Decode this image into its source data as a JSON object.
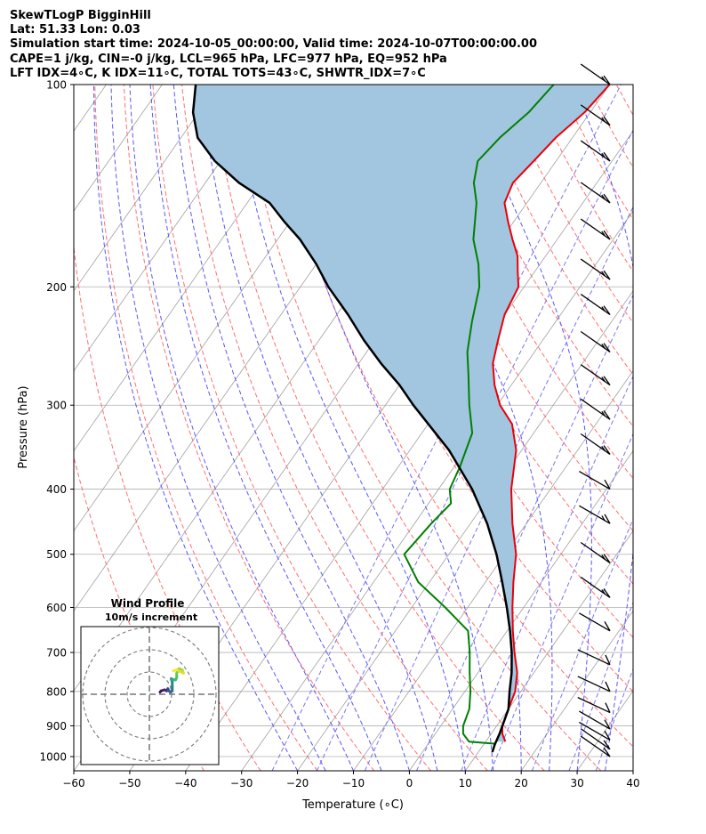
{
  "header": {
    "line1": "SkewTLogP BigginHill",
    "line2": "Lat: 51.33   Lon: 0.03",
    "line3": "Simulation start time: 2024-10-05_00:00:00, Valid time: 2024-10-07T00:00:00.00",
    "line4": "CAPE=1 j/kg, CIN=-0 j/kg, LCL=965 hPa, LFC=977 hPa, EQ=952 hPa",
    "line5": "LFT IDX=4∘C, K IDX=11∘C, TOTAL TOTS=43∘C, SHWTR_IDX=7∘C"
  },
  "chart_data": [
    {
      "type": "line",
      "subtype": "skew-t log-p",
      "xlabel": "Temperature (∘C)",
      "ylabel": "Pressure (hPa)",
      "xlim": [
        -60,
        40
      ],
      "ylim": [
        1050,
        100
      ],
      "yscale": "log",
      "grid": true,
      "x_ticks": [
        "−60",
        "−50",
        "−40",
        "−30",
        "−20",
        "−10",
        "0",
        "10",
        "20",
        "30",
        "40"
      ],
      "y_ticks": [
        "100",
        "200",
        "300",
        "400",
        "500",
        "600",
        "700",
        "800",
        "900",
        "1000"
      ],
      "series": [
        {
          "role": "temperature",
          "color": "#e8000b",
          "points": [
            [
              13.5,
              950
            ],
            [
              12,
              925
            ],
            [
              11,
              900
            ],
            [
              10,
              850
            ],
            [
              9,
              800
            ],
            [
              7,
              750
            ],
            [
              4,
              700
            ],
            [
              1,
              650
            ],
            [
              -2,
              600
            ],
            [
              -5,
              550
            ],
            [
              -8,
              500
            ],
            [
              -12.5,
              450
            ],
            [
              -17,
              400
            ],
            [
              -21,
              350
            ],
            [
              -25,
              320
            ],
            [
              -29.5,
              300
            ],
            [
              -33,
              280
            ],
            [
              -36,
              260
            ],
            [
              -38,
              240
            ],
            [
              -40,
              220
            ],
            [
              -41,
              200
            ],
            [
              -43,
              190
            ],
            [
              -45,
              180
            ],
            [
              -48,
              170
            ],
            [
              -51,
              160
            ],
            [
              -54,
              150
            ],
            [
              -55,
              140
            ],
            [
              -54,
              130
            ],
            [
              -53,
              120
            ],
            [
              -51,
              110
            ],
            [
              -50,
              100
            ]
          ]
        },
        {
          "role": "dewpoint",
          "color": "#008000",
          "points": [
            [
              12,
              957
            ],
            [
              7,
              950
            ],
            [
              5,
              925
            ],
            [
              4,
              900
            ],
            [
              3,
              850
            ],
            [
              1,
              800
            ],
            [
              -1.5,
              750
            ],
            [
              -4,
              700
            ],
            [
              -7,
              650
            ],
            [
              -14,
              600
            ],
            [
              -22,
              550
            ],
            [
              -28,
              500
            ],
            [
              -27,
              450
            ],
            [
              -26,
              420
            ],
            [
              -28,
              400
            ],
            [
              -29,
              370
            ],
            [
              -31,
              330
            ],
            [
              -35,
              300
            ],
            [
              -39,
              270
            ],
            [
              -42,
              250
            ],
            [
              -45,
              225
            ],
            [
              -48,
              200
            ],
            [
              -51,
              185
            ],
            [
              -55,
              170
            ],
            [
              -59,
              150
            ],
            [
              -62,
              140
            ],
            [
              -64,
              130
            ],
            [
              -63,
              120
            ],
            [
              -61,
              110
            ],
            [
              -60,
              100
            ]
          ]
        },
        {
          "role": "parcel",
          "color": "#000000",
          "points": [
            [
              12.5,
              985
            ],
            [
              12,
              960
            ],
            [
              11.5,
              925
            ],
            [
              10,
              850
            ],
            [
              8,
              800
            ],
            [
              6,
              750
            ],
            [
              3.5,
              700
            ],
            [
              0.5,
              650
            ],
            [
              -3,
              600
            ],
            [
              -7,
              550
            ],
            [
              -11.5,
              500
            ],
            [
              -17,
              450
            ],
            [
              -24,
              400
            ],
            [
              -33,
              350
            ],
            [
              -45,
              300
            ],
            [
              -50,
              280
            ],
            [
              -56,
              260
            ],
            [
              -62,
              240
            ],
            [
              -68,
              220
            ],
            [
              -75,
              200
            ],
            [
              -80,
              185
            ],
            [
              -86,
              170
            ],
            [
              -91,
              160
            ],
            [
              -96,
              150
            ],
            [
              -104,
              140
            ],
            [
              -111,
              130
            ],
            [
              -117,
              120
            ],
            [
              -121,
              110
            ],
            [
              -124,
              100
            ]
          ]
        }
      ],
      "background_lines": {
        "isotherms_color": "#a0a0a0",
        "dry_adiabats_color": "#ff6e6e",
        "moist_adiabats_color": "#5656ff",
        "mixing_ratio_color": "#7777ee",
        "cape_fill_color": "#a2c5e0"
      },
      "wind_barbs": [
        {
          "p": 100,
          "speed": 15,
          "dir": 235
        },
        {
          "p": 115,
          "speed": 15,
          "dir": 235
        },
        {
          "p": 130,
          "speed": 15,
          "dir": 235
        },
        {
          "p": 150,
          "speed": 15,
          "dir": 235
        },
        {
          "p": 170,
          "speed": 15,
          "dir": 235
        },
        {
          "p": 195,
          "speed": 15,
          "dir": 235
        },
        {
          "p": 220,
          "speed": 15,
          "dir": 235
        },
        {
          "p": 250,
          "speed": 15,
          "dir": 235
        },
        {
          "p": 280,
          "speed": 15,
          "dir": 235
        },
        {
          "p": 315,
          "speed": 15,
          "dir": 235
        },
        {
          "p": 355,
          "speed": 15,
          "dir": 235
        },
        {
          "p": 400,
          "speed": 10,
          "dir": 240
        },
        {
          "p": 450,
          "speed": 15,
          "dir": 240
        },
        {
          "p": 515,
          "speed": 15,
          "dir": 235
        },
        {
          "p": 580,
          "speed": 15,
          "dir": 235
        },
        {
          "p": 650,
          "speed": 10,
          "dir": 240
        },
        {
          "p": 730,
          "speed": 10,
          "dir": 245
        },
        {
          "p": 800,
          "speed": 10,
          "dir": 245
        },
        {
          "p": 860,
          "speed": 10,
          "dir": 245
        },
        {
          "p": 910,
          "speed": 10,
          "dir": 240
        },
        {
          "p": 945,
          "speed": 10,
          "dir": 240
        },
        {
          "p": 975,
          "speed": 10,
          "dir": 235
        },
        {
          "p": 1000,
          "speed": 10,
          "dir": 235
        }
      ]
    },
    {
      "type": "scatter",
      "subtype": "hodograph",
      "title": "Wind Profile",
      "subtitle": "10m/s increment",
      "ring_spacing_ms": 10,
      "rings": 3,
      "points": [
        [
          2.5,
          0.5
        ],
        [
          3,
          1
        ],
        [
          4.5,
          1.5
        ],
        [
          5.5,
          1
        ],
        [
          6,
          2
        ],
        [
          6.5,
          1
        ],
        [
          7,
          0.5
        ],
        [
          8,
          1
        ],
        [
          8,
          3
        ],
        [
          8,
          5
        ],
        [
          7.5,
          6.5
        ],
        [
          8.5,
          6
        ],
        [
          9.5,
          6
        ],
        [
          10,
          7
        ],
        [
          10,
          9
        ],
        [
          11,
          11
        ],
        [
          12.5,
          10.5
        ],
        [
          13,
          9
        ],
        [
          10,
          10.5
        ],
        [
          8.5,
          10
        ]
      ]
    }
  ]
}
